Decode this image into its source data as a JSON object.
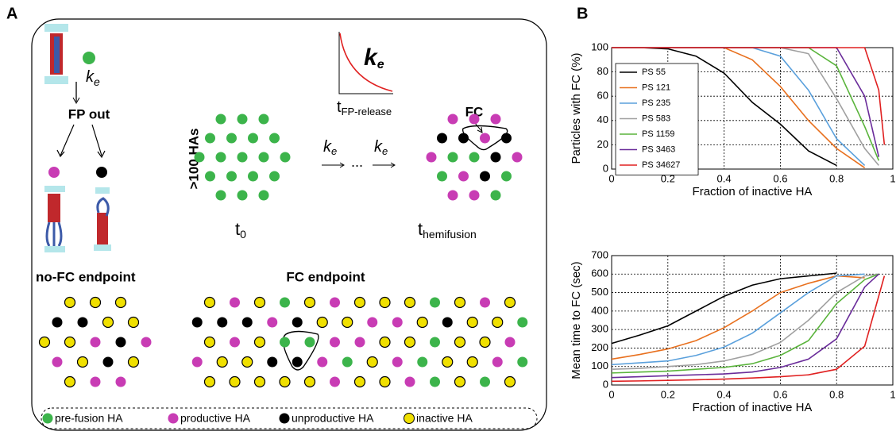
{
  "panel_a": {
    "label": "A",
    "rate": {
      "base": "k",
      "sub": "e"
    },
    "fp_out": "FP out",
    "count": ">100 HAs",
    "t0": {
      "base": "t",
      "sub": "0"
    },
    "t_release": {
      "base": "t",
      "sub": "FP-release"
    },
    "ellipsis": "...",
    "fc": "FC",
    "t_hemi": {
      "base": "t",
      "sub": "hemifusion"
    },
    "no_fc": "no-FC endpoint",
    "fc_endpoint": "FC endpoint",
    "legend": [
      {
        "label": "pre-fusion HA",
        "color": "#3cb44b"
      },
      {
        "label": "productive HA",
        "color": "#c83cb4"
      },
      {
        "label": "unproductive HA",
        "color": "#000000"
      },
      {
        "label": "inactive HA",
        "color": "#f0e000"
      }
    ]
  },
  "panel_b": {
    "label": "B"
  },
  "chart_data": [
    {
      "type": "line",
      "xlabel": "Fraction of inactive HA",
      "ylabel": "Particles with FC (%)",
      "xlim": [
        0,
        1
      ],
      "xticks": [
        0,
        0.2,
        0.4,
        0.6,
        0.8,
        1
      ],
      "ylim": [
        0,
        100
      ],
      "yticks": [
        0,
        20,
        40,
        60,
        80,
        100
      ],
      "grid": true,
      "legend": "top-left",
      "series": [
        {
          "name": "PS 55",
          "color": "#000000",
          "x": [
            0,
            0.1,
            0.2,
            0.3,
            0.4,
            0.5,
            0.6,
            0.7,
            0.8
          ],
          "values": [
            100,
            100,
            99,
            93,
            79,
            55,
            37,
            15,
            3
          ]
        },
        {
          "name": "PS 121",
          "color": "#e8701e",
          "x": [
            0,
            0.1,
            0.2,
            0.3,
            0.4,
            0.5,
            0.6,
            0.7,
            0.8,
            0.9
          ],
          "values": [
            100,
            100,
            100,
            100,
            100,
            90,
            68,
            40,
            17,
            1
          ]
        },
        {
          "name": "PS 235",
          "color": "#5aa0dc",
          "x": [
            0,
            0.1,
            0.2,
            0.3,
            0.4,
            0.5,
            0.6,
            0.7,
            0.8,
            0.9
          ],
          "values": [
            100,
            100,
            100,
            100,
            100,
            100,
            93,
            65,
            25,
            3
          ]
        },
        {
          "name": "PS 583",
          "color": "#a0a0a0",
          "x": [
            0,
            0.1,
            0.2,
            0.3,
            0.4,
            0.5,
            0.6,
            0.7,
            0.8,
            0.9,
            0.95
          ],
          "values": [
            100,
            100,
            100,
            100,
            100,
            100,
            100,
            95,
            58,
            17,
            3
          ]
        },
        {
          "name": "PS 1159",
          "color": "#5ab43c",
          "x": [
            0,
            0.1,
            0.2,
            0.3,
            0.4,
            0.5,
            0.6,
            0.7,
            0.8,
            0.9,
            0.95
          ],
          "values": [
            100,
            100,
            100,
            100,
            100,
            100,
            100,
            100,
            85,
            35,
            7
          ]
        },
        {
          "name": "PS 3463",
          "color": "#6a2c9a",
          "x": [
            0,
            0.1,
            0.2,
            0.3,
            0.4,
            0.5,
            0.6,
            0.7,
            0.8,
            0.9,
            0.95
          ],
          "values": [
            100,
            100,
            100,
            100,
            100,
            100,
            100,
            100,
            100,
            60,
            10
          ]
        },
        {
          "name": "PS 34627",
          "color": "#e02020",
          "x": [
            0,
            0.1,
            0.2,
            0.3,
            0.4,
            0.5,
            0.6,
            0.7,
            0.8,
            0.9,
            0.95,
            0.97
          ],
          "values": [
            100,
            100,
            100,
            100,
            100,
            100,
            100,
            100,
            100,
            100,
            65,
            20
          ]
        }
      ]
    },
    {
      "type": "line",
      "xlabel": "Fraction of inactive HA",
      "ylabel": "Mean time to FC (sec)",
      "xlim": [
        0,
        1
      ],
      "xticks": [
        0,
        0.2,
        0.4,
        0.6,
        0.8,
        1
      ],
      "ylim": [
        0,
        700
      ],
      "yticks": [
        0,
        100,
        200,
        300,
        400,
        500,
        600,
        700
      ],
      "grid": true,
      "series": [
        {
          "color": "#000000",
          "x": [
            0,
            0.1,
            0.2,
            0.3,
            0.4,
            0.5,
            0.6,
            0.7,
            0.8
          ],
          "values": [
            225,
            270,
            320,
            400,
            480,
            540,
            575,
            590,
            605
          ]
        },
        {
          "color": "#e8701e",
          "x": [
            0,
            0.1,
            0.2,
            0.3,
            0.4,
            0.5,
            0.6,
            0.7,
            0.8,
            0.9
          ],
          "values": [
            140,
            165,
            195,
            240,
            310,
            400,
            500,
            550,
            590,
            580
          ]
        },
        {
          "color": "#5aa0dc",
          "x": [
            0,
            0.1,
            0.2,
            0.3,
            0.4,
            0.5,
            0.6,
            0.7,
            0.8,
            0.9
          ],
          "values": [
            110,
            120,
            130,
            160,
            205,
            280,
            390,
            500,
            590,
            600
          ]
        },
        {
          "color": "#a0a0a0",
          "x": [
            0,
            0.1,
            0.2,
            0.3,
            0.4,
            0.5,
            0.6,
            0.7,
            0.8,
            0.9,
            0.95
          ],
          "values": [
            85,
            90,
            100,
            110,
            130,
            165,
            230,
            350,
            500,
            590,
            600
          ]
        },
        {
          "color": "#5ab43c",
          "x": [
            0,
            0.1,
            0.2,
            0.3,
            0.4,
            0.5,
            0.6,
            0.7,
            0.8,
            0.9,
            0.95
          ],
          "values": [
            65,
            70,
            75,
            85,
            95,
            115,
            160,
            240,
            440,
            570,
            600
          ]
        },
        {
          "color": "#6a2c9a",
          "x": [
            0,
            0.1,
            0.2,
            0.3,
            0.4,
            0.5,
            0.6,
            0.7,
            0.8,
            0.9,
            0.95
          ],
          "values": [
            40,
            45,
            50,
            55,
            60,
            70,
            95,
            140,
            250,
            530,
            600
          ]
        },
        {
          "color": "#e02020",
          "x": [
            0,
            0.1,
            0.2,
            0.3,
            0.4,
            0.5,
            0.6,
            0.7,
            0.8,
            0.9,
            0.97
          ],
          "values": [
            20,
            22,
            25,
            28,
            32,
            38,
            45,
            55,
            85,
            210,
            590
          ]
        }
      ]
    }
  ]
}
